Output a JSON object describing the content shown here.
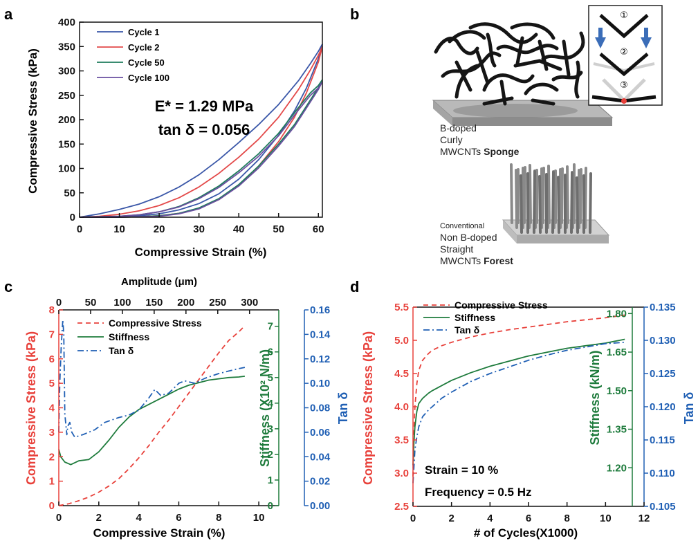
{
  "panel_letters": [
    "a",
    "b",
    "c",
    "d"
  ],
  "colors": {
    "red": "#e8413b",
    "green": "#1e7b3c",
    "blue": "#1f5fb4",
    "purple": "#6a47a8",
    "cycle1": "#3a57a8",
    "cycle2": "#e34949",
    "cycle50": "#1e7b5c",
    "cycle100": "#6a4fa0"
  },
  "illustration": {
    "sponge_caption": [
      "B-doped",
      "Curly",
      "MWCNTs",
      "Sponge"
    ],
    "forest_caption": [
      "Conventional",
      "Non B-doped",
      "Straight",
      "MWCNTs",
      "Forest"
    ],
    "inset_steps": [
      "①",
      "②",
      "③"
    ]
  },
  "chart_data": [
    {
      "panel": "a",
      "type": "line",
      "xlabel": "Compressive Strain (%)",
      "ylabel": "Compressive Stress (kPa)",
      "xlim": [
        0,
        61
      ],
      "ylim": [
        0,
        400
      ],
      "xticks": [
        0,
        10,
        20,
        30,
        40,
        50,
        60
      ],
      "yticks": [
        0,
        50,
        100,
        150,
        200,
        250,
        300,
        350,
        400
      ],
      "annotations": [
        "E* = 1.29 MPa",
        "tan δ = 0.056"
      ],
      "legend_position": "top-left",
      "series": [
        {
          "name": "Cycle 1",
          "color": "#3a57a8",
          "x": [
            0,
            5,
            10,
            15,
            20,
            25,
            30,
            35,
            40,
            45,
            50,
            55,
            58,
            60,
            61
          ],
          "y": [
            0,
            7,
            16,
            27,
            42,
            62,
            87,
            118,
            153,
            190,
            231,
            280,
            315,
            340,
            355
          ]
        },
        {
          "name": "Cycle 1",
          "color": "#3a57a8",
          "x": [
            61,
            60,
            57,
            54,
            50,
            45,
            40,
            35,
            30,
            25,
            20,
            15,
            10,
            5,
            0
          ],
          "y": [
            355,
            325,
            265,
            218,
            168,
            118,
            78,
            48,
            28,
            15,
            7,
            3,
            1,
            0,
            0
          ]
        },
        {
          "name": "Cycle 2",
          "color": "#e34949",
          "x": [
            0,
            5,
            10,
            15,
            20,
            25,
            30,
            35,
            40,
            45,
            50,
            55,
            58,
            60,
            61
          ],
          "y": [
            0,
            2,
            6,
            13,
            24,
            40,
            62,
            90,
            123,
            160,
            205,
            262,
            302,
            332,
            350
          ]
        },
        {
          "name": "Cycle 2",
          "color": "#e34949",
          "x": [
            61,
            60,
            57,
            54,
            50,
            45,
            40,
            35,
            30,
            25,
            20,
            15,
            10,
            5,
            0
          ],
          "y": [
            350,
            318,
            255,
            205,
            155,
            105,
            65,
            36,
            18,
            8,
            3,
            1,
            0,
            0,
            0
          ]
        },
        {
          "name": "Cycle 50",
          "color": "#1e7b5c",
          "x": [
            0,
            5,
            10,
            15,
            20,
            25,
            30,
            35,
            40,
            45,
            50,
            55,
            58,
            60,
            61
          ],
          "y": [
            0,
            1,
            2,
            5,
            11,
            22,
            40,
            64,
            95,
            130,
            172,
            225,
            255,
            270,
            282
          ]
        },
        {
          "name": "Cycle 50",
          "color": "#1e7b5c",
          "x": [
            61,
            60,
            57,
            54,
            50,
            45,
            40,
            35,
            30,
            25,
            20,
            15,
            10,
            5,
            0
          ],
          "y": [
            282,
            266,
            228,
            190,
            150,
            105,
            67,
            38,
            19,
            8,
            3,
            1,
            0,
            0,
            0
          ]
        },
        {
          "name": "Cycle 100",
          "color": "#6a4fa0",
          "x": [
            0,
            5,
            10,
            15,
            20,
            25,
            30,
            35,
            40,
            45,
            50,
            55,
            58,
            60,
            61
          ],
          "y": [
            0,
            1,
            2,
            5,
            11,
            21,
            38,
            61,
            91,
            125,
            167,
            220,
            250,
            265,
            278
          ]
        },
        {
          "name": "Cycle 100",
          "color": "#6a4fa0",
          "x": [
            61,
            60,
            57,
            54,
            50,
            45,
            40,
            35,
            30,
            25,
            20,
            15,
            10,
            5,
            0
          ],
          "y": [
            278,
            262,
            224,
            186,
            146,
            101,
            64,
            36,
            17,
            7,
            2,
            1,
            0,
            0,
            0
          ]
        }
      ]
    },
    {
      "panel": "c",
      "type": "line",
      "xlabel": "Compressive Strain (%)",
      "x2label": "Amplitude (μm)",
      "ylabel": "Compressive Stress (kPa)",
      "y2label": "Stiffness (X10² N/m)",
      "y3label": "Tan δ",
      "xlim": [
        0,
        11
      ],
      "xticks": [
        0,
        2,
        4,
        6,
        8,
        10
      ],
      "x2ticks": [
        0,
        50,
        100,
        150,
        200,
        250,
        300
      ],
      "x2lim": [
        0,
        346
      ],
      "ylim": [
        0,
        8
      ],
      "yticks": [
        0,
        1,
        2,
        3,
        4,
        5,
        6,
        7,
        8
      ],
      "y2lim": [
        0,
        7.64
      ],
      "y2ticks": [
        0,
        1,
        2,
        3,
        4,
        5,
        6,
        7
      ],
      "y3lim": [
        0,
        0.16
      ],
      "y3ticks": [
        "0.00",
        "0.02",
        "0.04",
        "0.06",
        "0.08",
        "0.10",
        "0.12",
        "0.14",
        "0.16"
      ],
      "legend_position": "top-left",
      "series": [
        {
          "name": "Compressive Stress",
          "color": "#e8413b",
          "style": "dashed",
          "axis": "left",
          "x": [
            0,
            0.5,
            1,
            1.5,
            2,
            2.5,
            3,
            3.5,
            4,
            4.5,
            5,
            5.5,
            6,
            6.5,
            7,
            7.5,
            8,
            8.5,
            9,
            9.3
          ],
          "y": [
            0,
            0.08,
            0.2,
            0.35,
            0.55,
            0.8,
            1.1,
            1.5,
            1.95,
            2.45,
            3.0,
            3.5,
            4.05,
            4.6,
            5.15,
            5.7,
            6.25,
            6.75,
            7.1,
            7.35
          ]
        },
        {
          "name": "Stiffness",
          "color": "#1e7b3c",
          "style": "solid",
          "axis": "right",
          "x": [
            0,
            0.1,
            0.3,
            0.6,
            1,
            1.5,
            2,
            2.5,
            3,
            3.5,
            4,
            4.5,
            5,
            5.5,
            6,
            6.5,
            7,
            7.5,
            8,
            8.5,
            9,
            9.3
          ],
          "y": [
            2.2,
            1.9,
            1.7,
            1.6,
            1.75,
            1.8,
            2.1,
            2.55,
            3.05,
            3.45,
            3.75,
            3.95,
            4.15,
            4.35,
            4.55,
            4.7,
            4.8,
            4.9,
            4.95,
            5.0,
            5.02,
            5.05
          ]
        },
        {
          "name": "Tan δ",
          "color": "#1f5fb4",
          "style": "dashdot",
          "axis": "tan",
          "x": [
            0,
            0.05,
            0.12,
            0.2,
            0.25,
            0.3,
            0.4,
            0.45,
            0.55,
            0.65,
            0.8,
            1.2,
            1.8,
            2.3,
            3,
            3.5,
            4,
            4.5,
            4.8,
            5.1,
            5.5,
            6,
            6.3,
            6.8,
            7.3,
            8,
            8.5,
            9,
            9.3
          ],
          "y": [
            0.06,
            0.1,
            0.13,
            0.152,
            0.14,
            0.075,
            0.058,
            0.065,
            0.068,
            0.06,
            0.056,
            0.058,
            0.062,
            0.068,
            0.072,
            0.074,
            0.078,
            0.088,
            0.095,
            0.09,
            0.092,
            0.1,
            0.102,
            0.1,
            0.104,
            0.108,
            0.11,
            0.112,
            0.113
          ]
        }
      ]
    },
    {
      "panel": "d",
      "type": "line",
      "xlabel": "# of Cycles(X1000)",
      "ylabel": "Compressive Stress (kPa)",
      "y2label": "Stiffness (kN/m)",
      "y3label": "Tan δ",
      "xlim": [
        0,
        12
      ],
      "xticks": [
        0,
        2,
        4,
        6,
        8,
        10,
        12
      ],
      "ylim": [
        2.5,
        5.5
      ],
      "yticks": [
        "2.5",
        "3.0",
        "3.5",
        "4.0",
        "4.5",
        "5.0",
        "5.5"
      ],
      "y2lim": [
        1.05,
        1.825
      ],
      "y2ticks": [
        "1.20",
        "1.35",
        "1.50",
        "1.65",
        "1.80"
      ],
      "y3lim": [
        0.105,
        0.135
      ],
      "y3ticks": [
        "0.105",
        "0.110",
        "0.115",
        "0.120",
        "0.125",
        "0.130",
        "0.135"
      ],
      "annotations": [
        "Strain = 10 %",
        "Frequency = 0.5 Hz"
      ],
      "legend_position": "top-left",
      "series": [
        {
          "name": "Compressive Stress",
          "color": "#e8413b",
          "style": "dashed",
          "axis": "left",
          "x": [
            0,
            0.05,
            0.1,
            0.2,
            0.3,
            0.5,
            0.8,
            1,
            1.5,
            2,
            3,
            4,
            5,
            6,
            7,
            8,
            9,
            10,
            11
          ],
          "y": [
            2.95,
            3.6,
            4.0,
            4.35,
            4.55,
            4.7,
            4.8,
            4.85,
            4.92,
            4.97,
            5.05,
            5.11,
            5.16,
            5.2,
            5.24,
            5.28,
            5.31,
            5.34,
            5.38
          ]
        },
        {
          "name": "Stiffness",
          "color": "#1e7b3c",
          "style": "solid",
          "axis": "right",
          "x": [
            0,
            0.05,
            0.1,
            0.2,
            0.3,
            0.5,
            0.8,
            1,
            1.5,
            2,
            3,
            4,
            5,
            6,
            7,
            8,
            9,
            10,
            11
          ],
          "y": [
            1.21,
            1.3,
            1.36,
            1.42,
            1.45,
            1.47,
            1.49,
            1.5,
            1.52,
            1.54,
            1.57,
            1.595,
            1.615,
            1.635,
            1.65,
            1.665,
            1.675,
            1.685,
            1.7
          ]
        },
        {
          "name": "Tan δ",
          "color": "#1f5fb4",
          "style": "dashdot",
          "axis": "tan",
          "x": [
            0,
            0.05,
            0.1,
            0.2,
            0.3,
            0.5,
            0.8,
            1,
            1.5,
            2,
            3,
            4,
            5,
            6,
            7,
            8,
            9,
            10,
            11
          ],
          "y": [
            0.1085,
            0.111,
            0.1135,
            0.1155,
            0.117,
            0.1185,
            0.1195,
            0.12,
            0.1213,
            0.1222,
            0.1238,
            0.125,
            0.126,
            0.127,
            0.1278,
            0.1285,
            0.129,
            0.1295,
            0.1297
          ]
        }
      ]
    }
  ]
}
